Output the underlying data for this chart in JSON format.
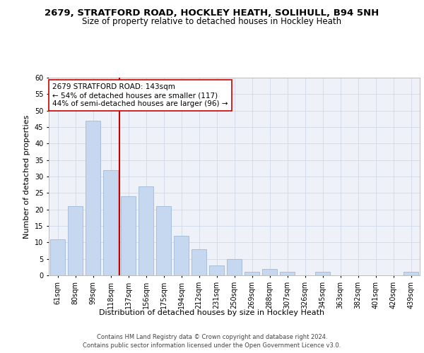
{
  "title_line1": "2679, STRATFORD ROAD, HOCKLEY HEATH, SOLIHULL, B94 5NH",
  "title_line2": "Size of property relative to detached houses in Hockley Heath",
  "xlabel": "Distribution of detached houses by size in Hockley Heath",
  "ylabel": "Number of detached properties",
  "categories": [
    "61sqm",
    "80sqm",
    "99sqm",
    "118sqm",
    "137sqm",
    "156sqm",
    "175sqm",
    "194sqm",
    "212sqm",
    "231sqm",
    "250sqm",
    "269sqm",
    "288sqm",
    "307sqm",
    "326sqm",
    "345sqm",
    "363sqm",
    "382sqm",
    "401sqm",
    "420sqm",
    "439sqm"
  ],
  "values": [
    11,
    21,
    47,
    32,
    24,
    27,
    21,
    12,
    8,
    3,
    5,
    1,
    2,
    1,
    0,
    1,
    0,
    0,
    0,
    0,
    1
  ],
  "bar_color": "#c5d8f0",
  "bar_edge_color": "#a0b8d8",
  "vline_color": "#cc0000",
  "annotation_text": "2679 STRATFORD ROAD: 143sqm\n← 54% of detached houses are smaller (117)\n44% of semi-detached houses are larger (96) →",
  "annotation_box_color": "#ffffff",
  "annotation_box_edge": "#cc0000",
  "ylim": [
    0,
    60
  ],
  "yticks": [
    0,
    5,
    10,
    15,
    20,
    25,
    30,
    35,
    40,
    45,
    50,
    55,
    60
  ],
  "grid_color": "#d0d8e8",
  "background_color": "#eef2f8",
  "footer_line1": "Contains HM Land Registry data © Crown copyright and database right 2024.",
  "footer_line2": "Contains public sector information licensed under the Open Government Licence v3.0.",
  "title_fontsize": 9.5,
  "subtitle_fontsize": 8.5,
  "axis_label_fontsize": 8,
  "tick_fontsize": 7,
  "annotation_fontsize": 7.5,
  "footer_fontsize": 6.0
}
